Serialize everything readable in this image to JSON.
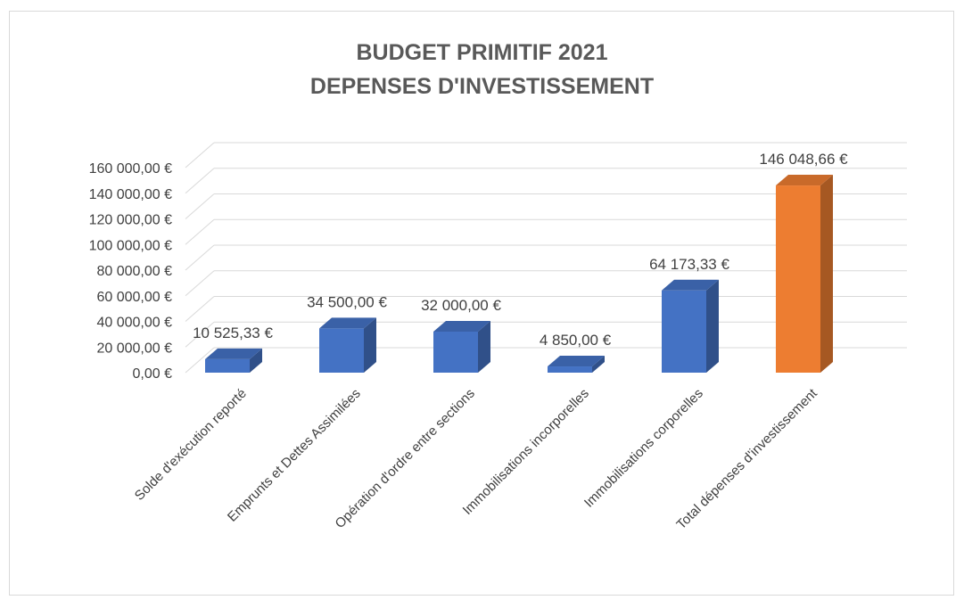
{
  "chart_data": {
    "type": "bar",
    "title_lines": [
      "BUDGET PRIMITIF 2021",
      "DEPENSES D'INVESTISSEMENT"
    ],
    "categories": [
      "Solde d'exécution reporté",
      "Emprunts et Dettes Assimilées",
      "Opération d'ordre entre sections",
      "Immobilisations incorporelles",
      "Immobilisations corporelles",
      "Total dépenses d'investissement"
    ],
    "values": [
      10525.33,
      34500,
      32000,
      4850,
      64173.33,
      146048.66
    ],
    "value_labels": [
      "10 525,33 €",
      "34 500,00 €",
      "32 000,00 €",
      "4 850,00 €",
      "64 173,33 €",
      "146 048,66 €"
    ],
    "yticks": [
      0,
      20000,
      40000,
      60000,
      80000,
      100000,
      120000,
      140000,
      160000
    ],
    "ytick_labels": [
      "0,00 €",
      "20 000,00 €",
      "40 000,00 €",
      "60 000,00 €",
      "80 000,00 €",
      "100 000,00 €",
      "120 000,00 €",
      "140 000,00 €",
      "160 000,00 €"
    ],
    "ylim": [
      0,
      160000
    ],
    "xlabel": "",
    "ylabel": "",
    "grid": true,
    "style": "3d-column",
    "colors": {
      "default_bar": "#4472c4",
      "highlight_bar": "#ed7d31",
      "grid": "#d9d9d9",
      "text": "#404040",
      "title": "#595959"
    },
    "highlight_index": 5
  }
}
